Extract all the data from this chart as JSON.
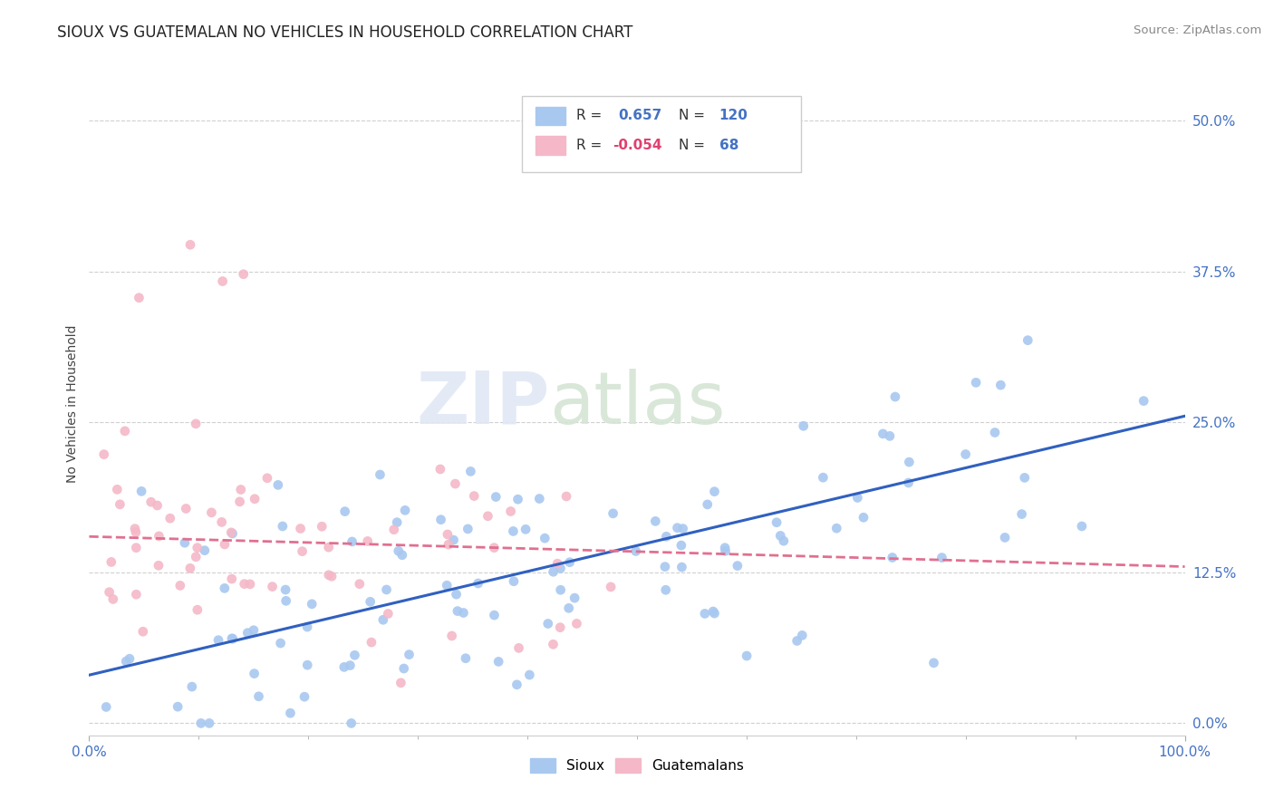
{
  "title": "SIOUX VS GUATEMALAN NO VEHICLES IN HOUSEHOLD CORRELATION CHART",
  "source": "Source: ZipAtlas.com",
  "ylabel": "No Vehicles in Household",
  "xlim": [
    0.0,
    1.0
  ],
  "ylim": [
    -0.01,
    0.54
  ],
  "ytick_vals": [
    0.0,
    0.125,
    0.25,
    0.375,
    0.5
  ],
  "ytick_labels": [
    "0.0%",
    "12.5%",
    "25.0%",
    "37.5%",
    "50.0%"
  ],
  "xtick_vals": [
    0.0,
    1.0
  ],
  "xtick_labels": [
    "0.0%",
    "100.0%"
  ],
  "sioux_R": "0.657",
  "sioux_N": "120",
  "guatemalan_R": "-0.054",
  "guatemalan_N": "68",
  "sioux_color": "#a8c8f0",
  "guatemalan_color": "#f4b8c8",
  "sioux_line_color": "#3060c0",
  "guatemalan_line_color": "#e07090",
  "background_color": "#ffffff",
  "grid_color": "#d0d0d0",
  "watermark_zip": "ZIP",
  "watermark_atlas": "atlas",
  "title_fontsize": 12,
  "axis_label_fontsize": 10,
  "tick_fontsize": 11
}
